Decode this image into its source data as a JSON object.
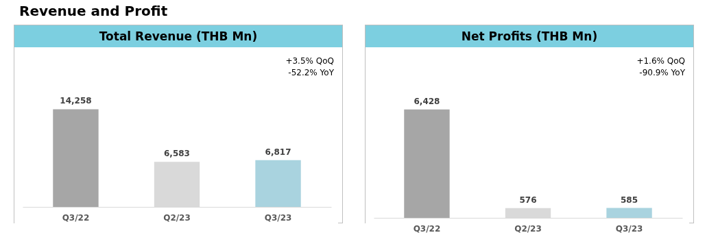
{
  "chart_data": [
    {
      "type": "bar",
      "title": "Revenue and Profit",
      "subtitle": "Total Revenue (THB Mn)",
      "categories": [
        "Q3/22",
        "Q2/23",
        "Q3/23"
      ],
      "values": [
        14258,
        6583,
        6817
      ],
      "value_labels": [
        "14,258",
        "6,583",
        "6,817"
      ],
      "colors": [
        "#a6a6a6",
        "#d9d9d9",
        "#a9d3df"
      ],
      "annotations": [
        "+3.5% QoQ",
        "-52.2% YoY"
      ]
    },
    {
      "type": "bar",
      "subtitle": "Net Profits (THB Mn)",
      "categories": [
        "Q3/22",
        "Q2/23",
        "Q3/23"
      ],
      "values": [
        6428,
        576,
        585
      ],
      "value_labels": [
        "6,428",
        "576",
        "585"
      ],
      "colors": [
        "#a6a6a6",
        "#d9d9d9",
        "#a9d3df"
      ],
      "annotations": [
        "+1.6% QoQ",
        "-90.9% YoY"
      ]
    }
  ]
}
